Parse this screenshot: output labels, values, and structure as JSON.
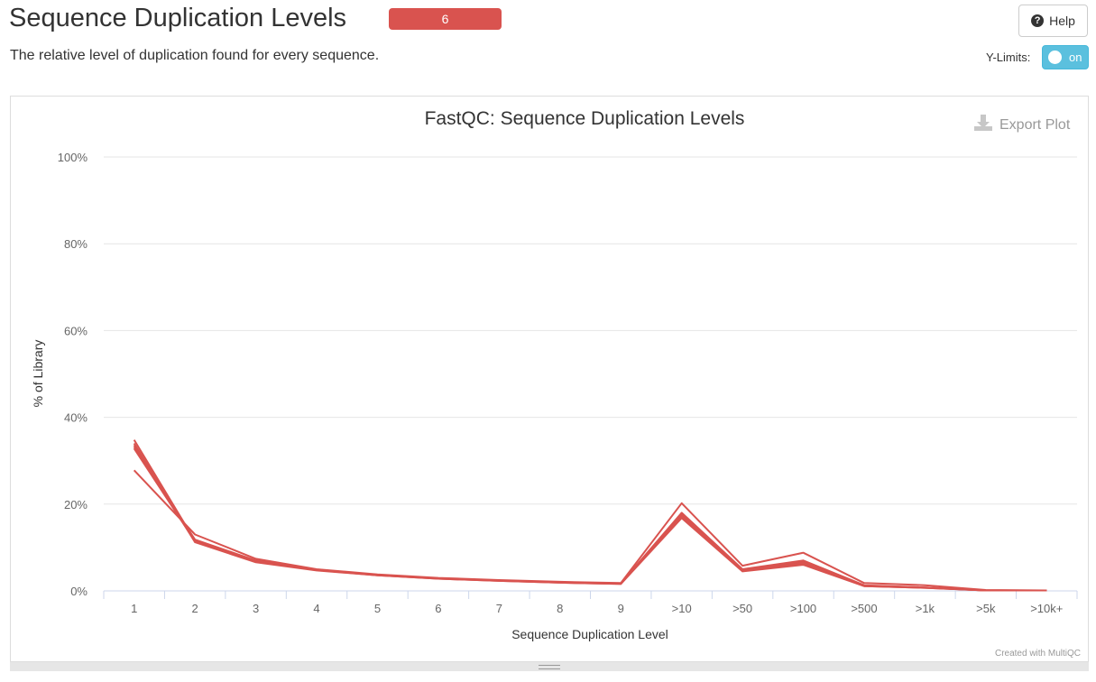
{
  "header": {
    "title": "Sequence Duplication Levels",
    "badge": "6",
    "subtitle": "The relative level of duplication found for every sequence.",
    "help_label": "Help",
    "ylimits_label": "Y-Limits:",
    "toggle_label": "on"
  },
  "plot": {
    "export_label": "Export Plot",
    "credit": "Created with MultiQC"
  },
  "colors": {
    "series": "#d9534f",
    "badge": "#d9534f",
    "toggle": "#5bc0de"
  },
  "chart_data": {
    "type": "line",
    "title": "FastQC: Sequence Duplication Levels",
    "xlabel": "Sequence Duplication Level",
    "ylabel": "% of Library",
    "categories": [
      "1",
      "2",
      "3",
      "4",
      "5",
      "6",
      "7",
      "8",
      "9",
      ">10",
      ">50",
      ">100",
      ">500",
      ">1k",
      ">5k",
      ">10k+"
    ],
    "yticks": [
      "0%",
      "20%",
      "40%",
      "60%",
      "80%",
      "100%"
    ],
    "ylim": [
      0,
      100
    ],
    "grid": true,
    "legend": "none",
    "series": [
      {
        "values": [
          34.8,
          11.5,
          6.8,
          4.8,
          3.7,
          2.9,
          2.4,
          2.0,
          1.7,
          17.5,
          4.8,
          6.5,
          1.2,
          0.8,
          0.1,
          0.1
        ]
      },
      {
        "values": [
          34.0,
          11.2,
          6.6,
          4.7,
          3.6,
          2.8,
          2.3,
          1.9,
          1.6,
          16.8,
          4.5,
          6.0,
          1.1,
          0.7,
          0.1,
          0.1
        ]
      },
      {
        "values": [
          33.2,
          11.8,
          7.0,
          4.9,
          3.7,
          2.9,
          2.4,
          2.0,
          1.7,
          18.0,
          5.0,
          7.0,
          1.3,
          0.8,
          0.1,
          0.1
        ]
      },
      {
        "values": [
          32.8,
          11.4,
          6.7,
          4.8,
          3.6,
          2.8,
          2.3,
          1.9,
          1.6,
          17.2,
          4.6,
          6.3,
          1.1,
          0.7,
          0.1,
          0.1
        ]
      },
      {
        "values": [
          33.6,
          11.6,
          6.9,
          4.8,
          3.7,
          2.9,
          2.4,
          2.0,
          1.7,
          17.8,
          4.9,
          6.8,
          1.2,
          0.8,
          0.1,
          0.1
        ]
      },
      {
        "values": [
          27.8,
          13.0,
          7.4,
          5.0,
          3.8,
          3.0,
          2.5,
          2.1,
          1.8,
          20.2,
          5.8,
          8.8,
          1.8,
          1.3,
          0.2,
          0.1
        ]
      }
    ]
  }
}
